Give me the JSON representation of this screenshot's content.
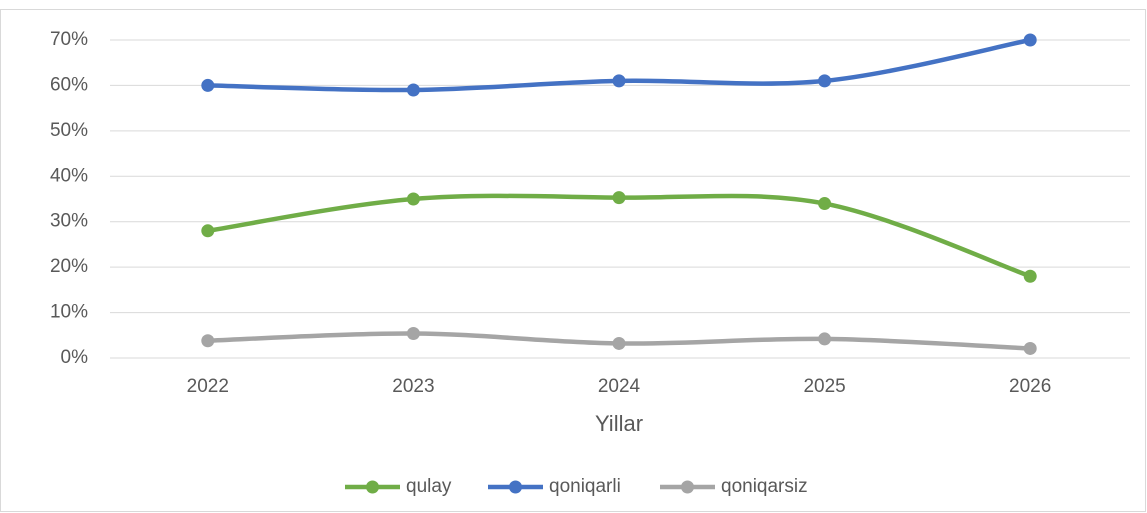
{
  "chart_data": {
    "type": "line",
    "x_label": "Yillar",
    "categories": [
      "2022",
      "2023",
      "2024",
      "2025",
      "2026"
    ],
    "series": [
      {
        "name": "qulay",
        "color": "#70ad47",
        "values": [
          28,
          35,
          35.3,
          34,
          18
        ]
      },
      {
        "name": "qoniqarli",
        "color": "#4472c4",
        "values": [
          60,
          59,
          61,
          61,
          70
        ]
      },
      {
        "name": "qoniqarsiz",
        "color": "#a5a5a5",
        "values": [
          3.8,
          5.4,
          3.2,
          4.2,
          2.1
        ]
      }
    ],
    "ylim": [
      0,
      70
    ],
    "yticks": [
      {
        "value": 0,
        "label": "0%"
      },
      {
        "value": 10,
        "label": "10%"
      },
      {
        "value": 20,
        "label": "20%"
      },
      {
        "value": 30,
        "label": "30%"
      },
      {
        "value": 40,
        "label": "40%"
      },
      {
        "value": 50,
        "label": "50%"
      },
      {
        "value": 60,
        "label": "60%"
      },
      {
        "value": 70,
        "label": "70%"
      }
    ],
    "grid": true,
    "smooth": true,
    "legend": "bottom"
  }
}
